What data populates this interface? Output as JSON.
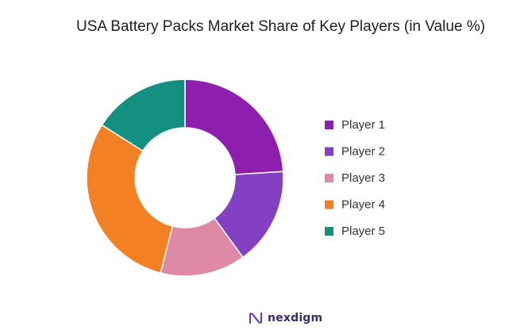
{
  "chart_data": {
    "type": "pie",
    "title": "USA Battery Packs Market Share of Key Players (in Value %)",
    "categories": [
      "Player 1",
      "Player 2",
      "Player 3",
      "Player 4",
      "Player 5"
    ],
    "values": [
      24,
      16,
      14,
      30,
      16
    ],
    "colors": [
      "#8e1fae",
      "#8340c2",
      "#de8aa6",
      "#f38124",
      "#13907f"
    ],
    "donut": true,
    "legend_position": "right"
  },
  "branding": {
    "logo_text": "nexdigm",
    "icon": "nexdigm-logo-icon"
  }
}
